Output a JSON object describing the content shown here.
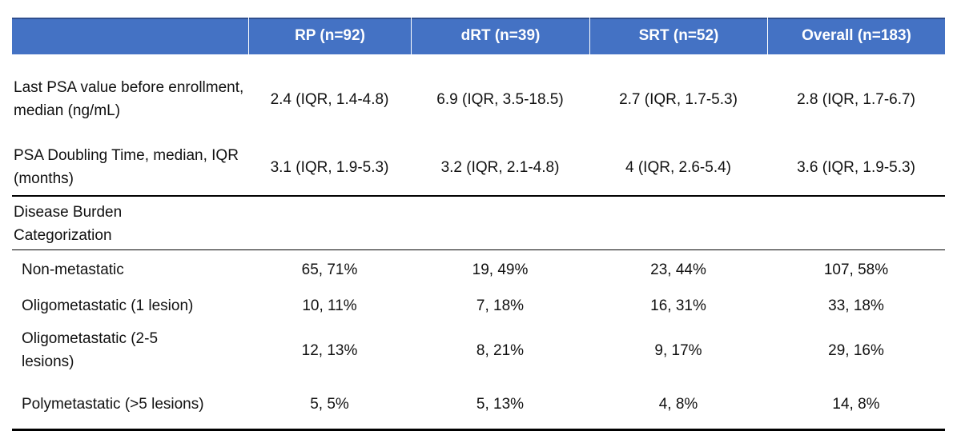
{
  "table": {
    "columns": [
      "RP (n=92)",
      "dRT (n=39)",
      "SRT (n=52)",
      "Overall (n=183)"
    ],
    "rows": [
      {
        "label": "Last PSA value before enrollment, median (ng/mL)",
        "cells": [
          "2.4 (IQR, 1.4-4.8)",
          "6.9 (IQR, 3.5-18.5)",
          "2.7 (IQR, 1.7-5.3)",
          "2.8 (IQR, 1.7-6.7)"
        ]
      },
      {
        "label": "PSA Doubling Time, median, IQR (months)",
        "cells": [
          "3.1 (IQR, 1.9-5.3)",
          "3.2 (IQR, 2.1-4.8)",
          "4 (IQR, 2.6-5.4)",
          "3.6 (IQR, 1.9-5.3)"
        ]
      },
      {
        "label": "Disease Burden Categorization"
      },
      {
        "label": "Non-metastatic",
        "cells": [
          "65, 71%",
          "19, 49%",
          "23, 44%",
          "107, 58%"
        ]
      },
      {
        "label": "Oligometastatic (1 lesion)",
        "cells": [
          "10, 11%",
          "7, 18%",
          "16, 31%",
          "33, 18%"
        ]
      },
      {
        "label": "Oligometastatic (2-5 lesions)",
        "cells": [
          "12, 13%",
          "8, 21%",
          "9, 17%",
          "29, 16%"
        ]
      },
      {
        "label": "Polymetastatic (>5 lesions)",
        "cells": [
          "5, 5%",
          "5, 13%",
          "4, 8%",
          "14, 8%"
        ]
      }
    ]
  }
}
